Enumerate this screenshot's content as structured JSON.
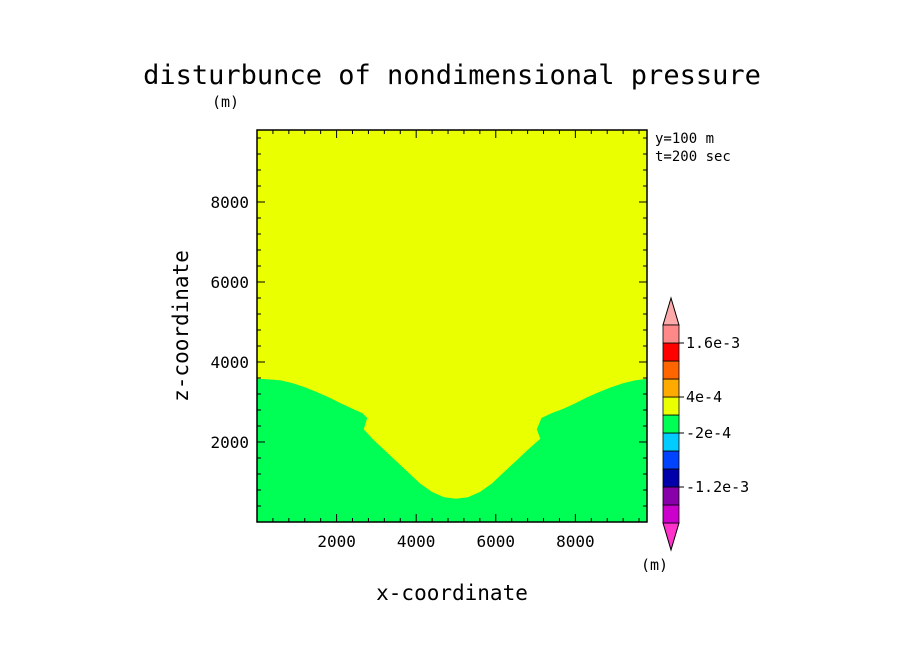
{
  "chart_data": {
    "type": "heatmap",
    "title": "disturbunce of nondimensional pressure",
    "title_unit": "(m)",
    "xlabel": "x-coordinate",
    "ylabel": "z-coordinate",
    "xlim": [
      0,
      9800
    ],
    "ylim": [
      0,
      9800
    ],
    "xticks": [
      2000,
      4000,
      6000,
      8000
    ],
    "yticks": [
      2000,
      4000,
      6000,
      8000
    ],
    "info_lines": [
      "y=100 m",
      "t=200 sec"
    ],
    "background_color": "#eaff00",
    "regions": [
      {
        "name": "negative-disturbance-region",
        "level": "-2e-4 to 0",
        "color": "#00ff55",
        "boundary_x": [
          0,
          250,
          600,
          900,
          1200,
          1500,
          1800,
          2100,
          2400,
          2650,
          2770,
          2680,
          2900,
          3200,
          3500,
          3800,
          4100,
          4400,
          4700,
          5000,
          5300,
          5600,
          5900,
          6200,
          6500,
          6800,
          7120,
          7030,
          7150,
          7400,
          7700,
          8000,
          8300,
          8600,
          8900,
          9200,
          9500,
          9800
        ],
        "boundary_z": [
          3580,
          3570,
          3540,
          3470,
          3370,
          3250,
          3120,
          2970,
          2830,
          2720,
          2600,
          2320,
          2080,
          1800,
          1520,
          1240,
          960,
          750,
          620,
          580,
          620,
          750,
          960,
          1240,
          1520,
          1800,
          2080,
          2320,
          2600,
          2720,
          2830,
          2970,
          3120,
          3250,
          3370,
          3470,
          3540,
          3580
        ]
      }
    ],
    "colorbar": {
      "unit": "(m)",
      "levels": [
        {
          "color": "#cc00cc"
        },
        {
          "color": "#8800aa"
        },
        {
          "color": "#0000aa"
        },
        {
          "color": "#0044ff"
        },
        {
          "color": "#00ccff"
        },
        {
          "color": "#00ff55"
        },
        {
          "color": "#eaff00"
        },
        {
          "color": "#ffaa00"
        },
        {
          "color": "#ff6600"
        },
        {
          "color": "#ff0000"
        },
        {
          "color": "#ff8888"
        }
      ],
      "under_color": "#ff33cc",
      "over_color": "#ffaaaa",
      "labels": [
        {
          "text": "-1.2e-3",
          "boundary_index": 2
        },
        {
          "text": "-2e-4",
          "boundary_index": 5
        },
        {
          "text": "4e-4",
          "boundary_index": 7
        },
        {
          "text": "1.6e-3",
          "boundary_index": 10
        }
      ]
    }
  }
}
